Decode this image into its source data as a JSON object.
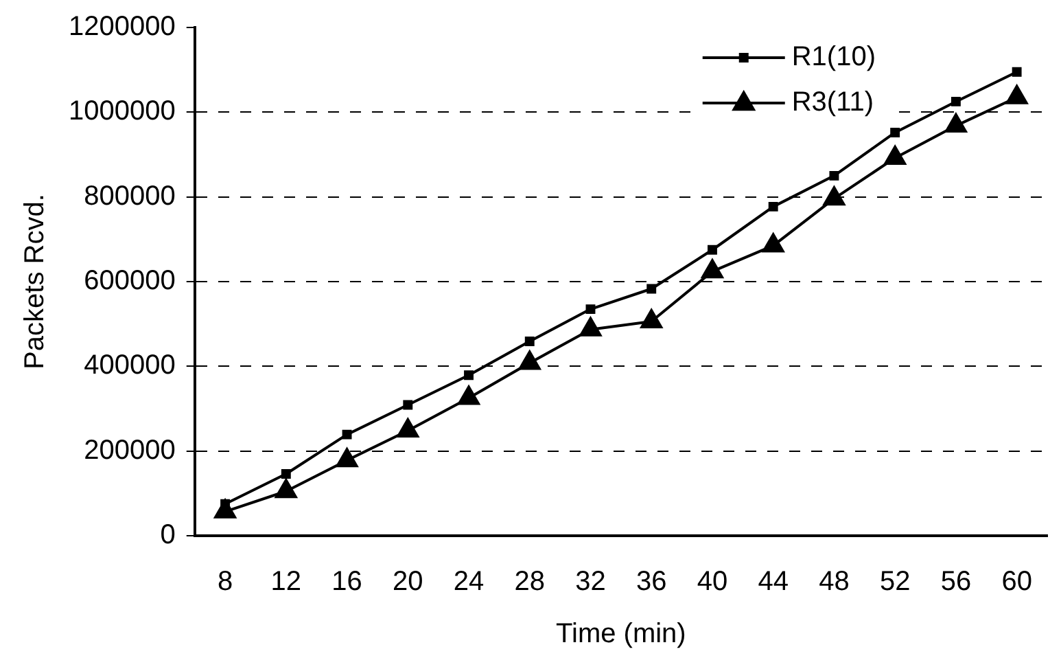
{
  "chart_data": {
    "type": "line",
    "xlabel": "Time (min)",
    "ylabel": "Packets Rcvd.",
    "categories": [
      "8",
      "12",
      "16",
      "20",
      "24",
      "28",
      "32",
      "36",
      "40",
      "44",
      "48",
      "52",
      "56",
      "60"
    ],
    "series": [
      {
        "name": "R1(10)",
        "color": "#000000",
        "marker": "square",
        "values": [
          75000,
          146000,
          239000,
          309000,
          379000,
          459000,
          535000,
          583000,
          675000,
          777000,
          850000,
          952000,
          1025000,
          1095000
        ]
      },
      {
        "name": "R3(11)",
        "color": "#000000",
        "marker": "triangle",
        "values": [
          57000,
          105000,
          178000,
          248000,
          325000,
          408000,
          487000,
          506000,
          624000,
          685000,
          796000,
          892000,
          968000,
          1035000
        ]
      }
    ],
    "ylim": [
      0,
      1200000
    ],
    "yticks": [
      0,
      200000,
      400000,
      600000,
      800000,
      1000000,
      1200000
    ],
    "grid": "y",
    "legend": "top right"
  }
}
